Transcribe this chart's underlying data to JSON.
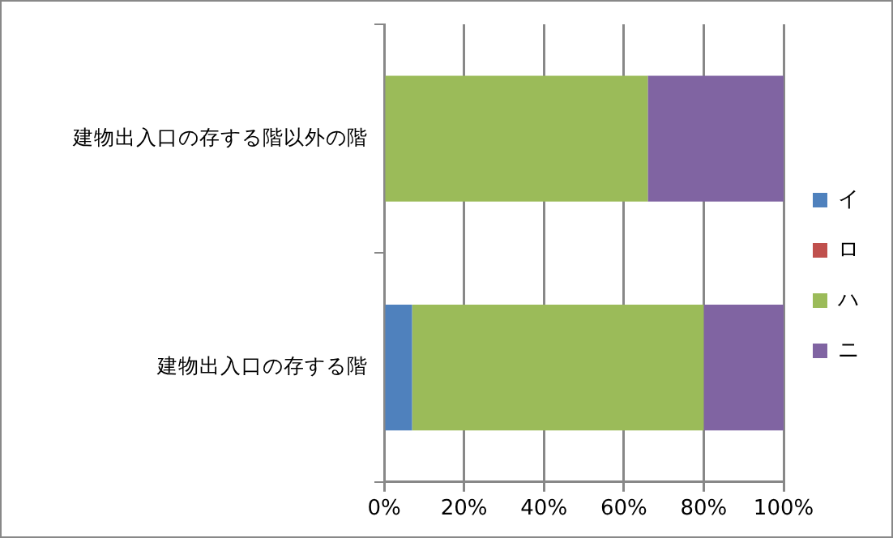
{
  "chart_data": {
    "type": "bar",
    "orientation": "horizontal",
    "stacked": true,
    "categories": [
      "建物出入口の存する階以外の階",
      "建物出入口の存する階"
    ],
    "series": [
      {
        "name": "イ",
        "color": "#4f81bd",
        "values": [
          0,
          7
        ]
      },
      {
        "name": "ロ",
        "color": "#c0504d",
        "values": [
          0,
          0
        ]
      },
      {
        "name": "ハ",
        "color": "#9bbb59",
        "values": [
          66,
          73
        ]
      },
      {
        "name": "ニ",
        "color": "#8064a2",
        "values": [
          34,
          20
        ]
      }
    ],
    "xlim": [
      0,
      100
    ],
    "xticks": [
      {
        "value": 0,
        "label": "0%"
      },
      {
        "value": 20,
        "label": "20%"
      },
      {
        "value": 40,
        "label": "40%"
      },
      {
        "value": 60,
        "label": "60%"
      },
      {
        "value": 80,
        "label": "80%"
      },
      {
        "value": 100,
        "label": "100%"
      }
    ],
    "grid": "x",
    "legend": "right"
  }
}
